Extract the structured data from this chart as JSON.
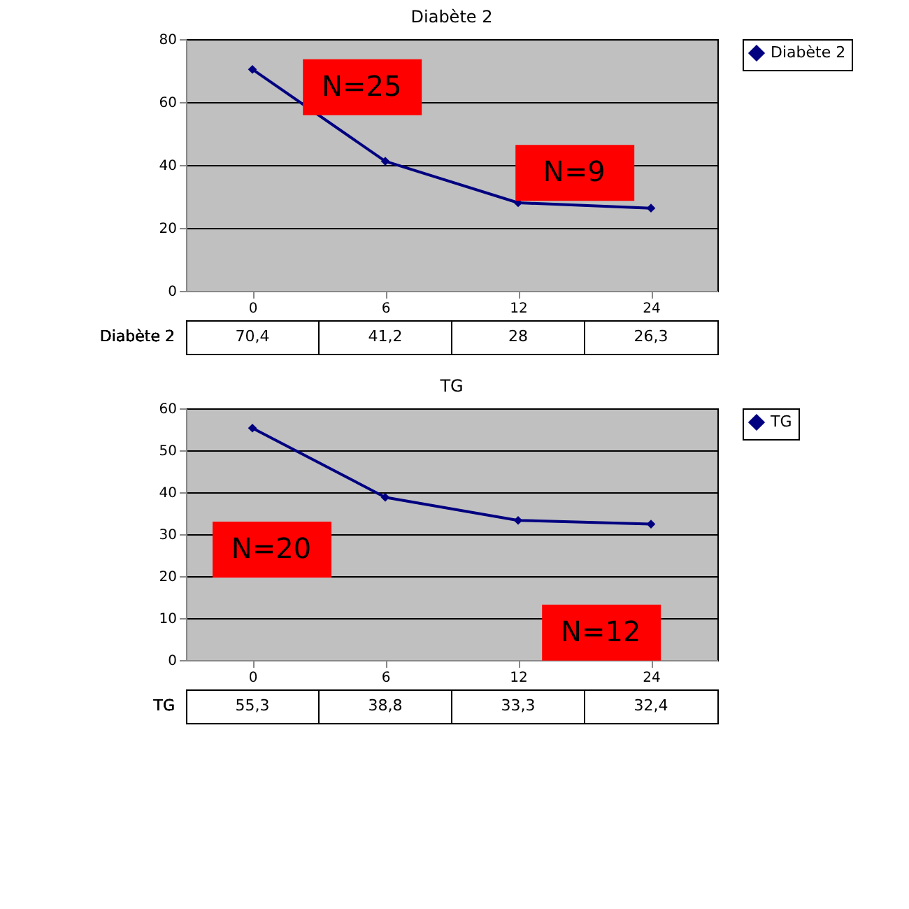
{
  "chart_data": [
    {
      "type": "line",
      "title": "Diabète 2",
      "categories": [
        "0",
        "6",
        "12",
        "24"
      ],
      "series": [
        {
          "name": "Diabète 2",
          "color": "#000080",
          "values": [
            70.4,
            41.2,
            28,
            26.3
          ],
          "value_labels": [
            "70,4",
            "41,2",
            "28",
            "26,3"
          ]
        }
      ],
      "ylim": [
        0,
        80
      ],
      "yticks": [
        0,
        20,
        40,
        60,
        80
      ],
      "grid": "y",
      "legend": "right",
      "marker": "diamond",
      "data_labels": true,
      "annotations": [
        "N=25",
        "N=9"
      ]
    },
    {
      "type": "line",
      "title": "TG",
      "categories": [
        "0",
        "6",
        "12",
        "24"
      ],
      "series": [
        {
          "name": "TG",
          "color": "#000080",
          "values": [
            55.3,
            38.8,
            33.3,
            32.4
          ],
          "value_labels": [
            "55,3",
            "38,8",
            "33,3",
            "32,4"
          ]
        }
      ],
      "ylim": [
        0,
        60
      ],
      "yticks": [
        0,
        10,
        20,
        30,
        40,
        50,
        60
      ],
      "grid": "y",
      "legend": "right",
      "marker": "diamond",
      "data_labels": true,
      "annotations": [
        "N=20",
        "N=12"
      ]
    }
  ]
}
